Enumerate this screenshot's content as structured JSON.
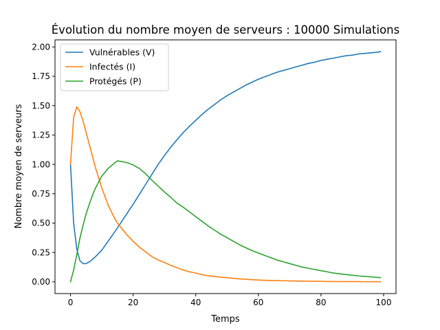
{
  "chart_data": {
    "type": "line",
    "title": "Évolution du nombre moyen de serveurs : 10000 Simulations",
    "xlabel": "Temps",
    "ylabel": "Nombre moyen de serveurs",
    "xlim": [
      -4.95,
      103.95
    ],
    "ylim": [
      -0.1,
      2.06
    ],
    "xticks": [
      0,
      20,
      40,
      60,
      80,
      100
    ],
    "yticks": [
      0.0,
      0.25,
      0.5,
      0.75,
      1.0,
      1.25,
      1.5,
      1.75,
      2.0
    ],
    "xtick_labels": [
      "0",
      "20",
      "40",
      "60",
      "80",
      "100"
    ],
    "ytick_labels": [
      "0.00",
      "0.25",
      "0.50",
      "0.75",
      "1.00",
      "1.25",
      "1.50",
      "1.75",
      "2.00"
    ],
    "grid": false,
    "legend_position": "top-left",
    "x": [
      0,
      1,
      2,
      3,
      4,
      5,
      6,
      7,
      8,
      10,
      12,
      14,
      15,
      18,
      20,
      22,
      24,
      26,
      28,
      30,
      32,
      34,
      36,
      38,
      40,
      42,
      44,
      46,
      48,
      50,
      52,
      54,
      56,
      58,
      60,
      62,
      64,
      66,
      68,
      70,
      72,
      74,
      76,
      78,
      80,
      82,
      84,
      86,
      88,
      90,
      92,
      94,
      96,
      98,
      99
    ],
    "series": [
      {
        "name": "Vulnérables (V)",
        "color": "#1f77b4",
        "values": [
          1.0,
          0.5,
          0.28,
          0.18,
          0.155,
          0.155,
          0.17,
          0.19,
          0.215,
          0.27,
          0.345,
          0.42,
          0.46,
          0.58,
          0.66,
          0.745,
          0.83,
          0.915,
          1.0,
          1.075,
          1.145,
          1.21,
          1.27,
          1.325,
          1.375,
          1.425,
          1.47,
          1.51,
          1.55,
          1.585,
          1.615,
          1.645,
          1.675,
          1.7,
          1.725,
          1.745,
          1.765,
          1.785,
          1.8,
          1.815,
          1.83,
          1.845,
          1.86,
          1.87,
          1.885,
          1.895,
          1.905,
          1.915,
          1.925,
          1.93,
          1.94,
          1.945,
          1.95,
          1.955,
          1.96
        ]
      },
      {
        "name": "Infectés (I)",
        "color": "#ff7f0e",
        "values": [
          1.0,
          1.4,
          1.49,
          1.45,
          1.37,
          1.27,
          1.17,
          1.07,
          0.97,
          0.8,
          0.655,
          0.545,
          0.5,
          0.4,
          0.345,
          0.295,
          0.255,
          0.215,
          0.185,
          0.165,
          0.14,
          0.12,
          0.1,
          0.085,
          0.075,
          0.06,
          0.052,
          0.045,
          0.04,
          0.035,
          0.03,
          0.025,
          0.022,
          0.018,
          0.015,
          0.013,
          0.011,
          0.01,
          0.009,
          0.008,
          0.007,
          0.006,
          0.005,
          0.004,
          0.004,
          0.003,
          0.003,
          0.002,
          0.002,
          0.002,
          0.002,
          0.001,
          0.001,
          0.001,
          0.001
        ]
      },
      {
        "name": "Protégés (P)",
        "color": "#2ca02c",
        "values": [
          0.0,
          0.1,
          0.23,
          0.37,
          0.48,
          0.58,
          0.66,
          0.735,
          0.8,
          0.9,
          0.965,
          1.01,
          1.03,
          1.015,
          0.995,
          0.965,
          0.92,
          0.865,
          0.815,
          0.765,
          0.72,
          0.67,
          0.635,
          0.595,
          0.555,
          0.515,
          0.475,
          0.44,
          0.405,
          0.375,
          0.345,
          0.315,
          0.29,
          0.265,
          0.245,
          0.225,
          0.205,
          0.185,
          0.17,
          0.155,
          0.14,
          0.125,
          0.115,
          0.105,
          0.095,
          0.085,
          0.075,
          0.068,
          0.062,
          0.056,
          0.05,
          0.046,
          0.042,
          0.038,
          0.036
        ]
      }
    ]
  }
}
